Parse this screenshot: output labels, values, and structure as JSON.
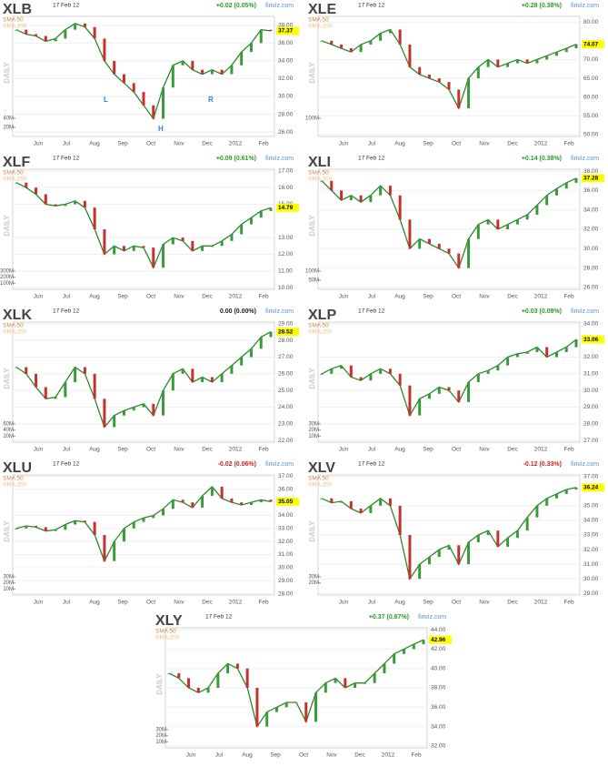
{
  "chart_data": [
    {
      "type": "line",
      "title": "XLB",
      "date": "17 Feb 12",
      "change": "+0.02 (0.05%)",
      "change_color": "#2a9a2a",
      "source": "finviz.com",
      "legend": [
        "SMA 50",
        "SMA 200"
      ],
      "axis_label": "DAILY",
      "annotations": [
        "L",
        "R",
        "H"
      ],
      "x_labels": [
        "Jun",
        "Jul",
        "Aug",
        "Sep",
        "Oct",
        "Nov",
        "Dec",
        "2012",
        "Feb"
      ],
      "values": [
        37.5,
        37,
        36.8,
        36.2,
        36.5,
        37.5,
        38.2,
        37.8,
        36.5,
        34,
        32.5,
        31.5,
        30.5,
        29,
        27.5,
        31,
        33.5,
        34,
        33,
        32.5,
        33,
        32.5,
        33.5,
        35,
        36,
        37.5,
        37.37
      ],
      "ylim": [
        25.5,
        39
      ],
      "yticks": [
        {
          "value": 38,
          "label": "38.00"
        },
        {
          "value": 36,
          "label": "36.00"
        },
        {
          "value": 34,
          "label": "34.00"
        },
        {
          "value": 32,
          "label": "32.00"
        },
        {
          "value": 30,
          "label": "30.00"
        },
        {
          "value": 28,
          "label": "28.00"
        },
        {
          "value": 26,
          "label": "26.00"
        }
      ],
      "volume_lim": [
        0,
        60
      ],
      "volume_ticks": [
        {
          "value": 40,
          "label": "40M"
        },
        {
          "value": 20,
          "label": "20M"
        }
      ],
      "color": "#2a8a2a",
      "grid": true
    },
    {
      "type": "line",
      "title": "XLE",
      "date": "17 Feb 12",
      "change": "+0.28 (0.38%)",
      "change_color": "#2a9a2a",
      "source": "finviz.com",
      "legend": [
        "SMA 50",
        "SMA 200"
      ],
      "axis_label": "DAILY",
      "x_labels": [
        "Jun",
        "Jul",
        "Aug",
        "Sep",
        "Oct",
        "Nov",
        "Dec",
        "2012",
        "Feb"
      ],
      "values": [
        75,
        74,
        73,
        72,
        74,
        75,
        77,
        78,
        74,
        68,
        66,
        65,
        64,
        62,
        57,
        65,
        68,
        70,
        68,
        69,
        70,
        69,
        70,
        71,
        72,
        73,
        74.07
      ],
      "ylim": [
        49.5,
        81.5
      ],
      "yticks": [
        {
          "value": 80,
          "label": "80.00"
        },
        {
          "value": 70,
          "label": "70.00"
        },
        {
          "value": 65,
          "label": "65.00"
        },
        {
          "value": 60,
          "label": "60.00"
        },
        {
          "value": 55,
          "label": "55.00"
        },
        {
          "value": 50,
          "label": "50.00"
        }
      ],
      "volume_lim": [
        0,
        150
      ],
      "volume_ticks": [
        {
          "value": 100,
          "label": "100M"
        }
      ],
      "color": "#2a8a2a",
      "grid": true
    },
    {
      "type": "line",
      "title": "XLF",
      "date": "17 Feb 12",
      "change": "+0.09 (0.61%)",
      "change_color": "#2a9a2a",
      "source": "finviz.com",
      "legend": [
        "SMA 50",
        "SMA 200"
      ],
      "axis_label": "DAILY",
      "x_labels": [
        "Jun",
        "Jul",
        "Aug",
        "Sep",
        "Oct",
        "Nov",
        "Dec",
        "2012",
        "Feb"
      ],
      "values": [
        16.3,
        16,
        15.6,
        15,
        14.9,
        15,
        15.2,
        14.8,
        13.5,
        12,
        12.5,
        12.2,
        12.5,
        12.4,
        11.2,
        12.6,
        13,
        12.8,
        12.2,
        12.5,
        12.5,
        12.8,
        13.2,
        13.8,
        14.2,
        14.6,
        14.79
      ],
      "ylim": [
        9.9,
        17.1
      ],
      "yticks": [
        {
          "value": 17,
          "label": "17.00"
        },
        {
          "value": 16,
          "label": "16.00"
        },
        {
          "value": 15,
          "label": "15.00"
        },
        {
          "value": 13,
          "label": "13.00"
        },
        {
          "value": 12,
          "label": "12.00"
        },
        {
          "value": 11,
          "label": "11.00"
        },
        {
          "value": 10,
          "label": "10.00"
        }
      ],
      "volume_lim": [
        0,
        450
      ],
      "volume_ticks": [
        {
          "value": 300,
          "label": "300M"
        },
        {
          "value": 200,
          "label": "200M"
        },
        {
          "value": 100,
          "label": "100M"
        }
      ],
      "color": "#2a8a2a",
      "grid": true
    },
    {
      "type": "line",
      "title": "XLI",
      "date": "17 Feb 12",
      "change": "+0.14 (0.38%)",
      "change_color": "#2a9a2a",
      "source": "finviz.com",
      "legend": [
        "SMA 50",
        "SMA 200"
      ],
      "axis_label": "DAILY",
      "x_labels": [
        "Jun",
        "Jul",
        "Aug",
        "Sep",
        "Oct",
        "Nov",
        "Dec",
        "2012",
        "Feb"
      ],
      "values": [
        37,
        36,
        35,
        35.5,
        34.8,
        35.5,
        36.5,
        35.5,
        33,
        30,
        31,
        30.5,
        30,
        29.5,
        28,
        31,
        32.5,
        33,
        32,
        32.5,
        33,
        33.5,
        34.5,
        35.5,
        36.2,
        36.8,
        37.28
      ],
      "ylim": [
        25.8,
        38.2
      ],
      "yticks": [
        {
          "value": 38,
          "label": "38.00"
        },
        {
          "value": 36,
          "label": "36.00"
        },
        {
          "value": 34,
          "label": "34.00"
        },
        {
          "value": 32,
          "label": "32.00"
        },
        {
          "value": 30,
          "label": "30.00"
        },
        {
          "value": 28,
          "label": "28.00"
        },
        {
          "value": 26,
          "label": "26.00"
        }
      ],
      "volume_lim": [
        0,
        150
      ],
      "volume_ticks": [
        {
          "value": 100,
          "label": "100M"
        },
        {
          "value": 50,
          "label": "50M"
        }
      ],
      "color": "#2a8a2a",
      "grid": true
    },
    {
      "type": "line",
      "title": "XLK",
      "date": "17 Feb 12",
      "change": "0.00 (0.00%)",
      "change_color": "#222222",
      "source": "finviz.com",
      "legend": [
        "SMA 50",
        "SMA 200"
      ],
      "axis_label": "DAILY",
      "x_labels": [
        "Jun",
        "Jul",
        "Aug",
        "Sep",
        "Oct",
        "Nov",
        "Dec",
        "2012",
        "Feb"
      ],
      "values": [
        26.4,
        26,
        25.2,
        24.5,
        24.6,
        25.5,
        26.4,
        26,
        24.5,
        22.8,
        23.5,
        23.8,
        24,
        24.2,
        23.5,
        25,
        26,
        26.3,
        25.5,
        25.8,
        25.5,
        26,
        26.5,
        27,
        27.5,
        28.2,
        28.52
      ],
      "ylim": [
        21.9,
        29.1
      ],
      "yticks": [
        {
          "value": 29,
          "label": "29.00"
        },
        {
          "value": 28,
          "label": "28.00"
        },
        {
          "value": 27,
          "label": "27.00"
        },
        {
          "value": 26,
          "label": "26.00"
        },
        {
          "value": 25,
          "label": "25.00"
        },
        {
          "value": 24,
          "label": "24.00"
        },
        {
          "value": 23,
          "label": "23.00"
        },
        {
          "value": 22,
          "label": "22.00"
        }
      ],
      "volume_lim": [
        0,
        90
      ],
      "volume_ticks": [
        {
          "value": 60,
          "label": "60M"
        },
        {
          "value": 40,
          "label": "40M"
        },
        {
          "value": 20,
          "label": "20M"
        }
      ],
      "color": "#2a8a2a",
      "grid": true
    },
    {
      "type": "line",
      "title": "XLP",
      "date": "17 Feb 12",
      "change": "+0.03 (0.09%)",
      "change_color": "#2a9a2a",
      "source": "finviz.com",
      "legend": [
        "SMA 50",
        "SMA 200"
      ],
      "axis_label": "DAILY",
      "x_labels": [
        "Jun",
        "Jul",
        "Aug",
        "Sep",
        "Oct",
        "Nov",
        "Dec",
        "2012",
        "Feb"
      ],
      "values": [
        31,
        31.3,
        31.5,
        30.8,
        30.6,
        31,
        31.3,
        31,
        30.3,
        28.5,
        29.5,
        29.8,
        30.2,
        30,
        29.3,
        30.5,
        31,
        31.2,
        31.5,
        32,
        32.2,
        32.3,
        32.6,
        32,
        32.3,
        32.6,
        33.06
      ],
      "ylim": [
        26.9,
        34.1
      ],
      "yticks": [
        {
          "value": 34,
          "label": "34.00"
        },
        {
          "value": 32,
          "label": "32.00"
        },
        {
          "value": 31,
          "label": "31.00"
        },
        {
          "value": 30,
          "label": "30.00"
        },
        {
          "value": 29,
          "label": "29.00"
        },
        {
          "value": 28,
          "label": "28.00"
        },
        {
          "value": 27,
          "label": "27.00"
        }
      ],
      "volume_lim": [
        0,
        45
      ],
      "volume_ticks": [
        {
          "value": 30,
          "label": "30M"
        },
        {
          "value": 20,
          "label": "20M"
        },
        {
          "value": 10,
          "label": "10M"
        }
      ],
      "color": "#2a8a2a",
      "grid": true
    },
    {
      "type": "line",
      "title": "XLU",
      "date": "17 Feb 12",
      "change": "-0.02 (0.06%)",
      "change_color": "#d02020",
      "source": "finviz.com",
      "legend": [
        "SMA 50",
        "SMA 200"
      ],
      "axis_label": "DAILY",
      "x_labels": [
        "Jun",
        "Jul",
        "Aug",
        "Sep",
        "Oct",
        "Nov",
        "Dec",
        "2012",
        "Feb"
      ],
      "values": [
        33,
        33.2,
        33.1,
        32.8,
        32.9,
        33.3,
        33.6,
        33.5,
        32.5,
        30.5,
        32,
        33,
        33.5,
        33.8,
        34,
        34.5,
        35.2,
        35,
        34.6,
        35.5,
        36.2,
        35.3,
        35,
        34.8,
        35,
        35.2,
        35.05
      ],
      "ylim": [
        27.9,
        37.1
      ],
      "yticks": [
        {
          "value": 37,
          "label": "37.00"
        },
        {
          "value": 36,
          "label": "36.00"
        },
        {
          "value": 34,
          "label": "34.00"
        },
        {
          "value": 33,
          "label": "33.00"
        },
        {
          "value": 32,
          "label": "32.00"
        },
        {
          "value": 31,
          "label": "31.00"
        },
        {
          "value": 30,
          "label": "30.00"
        },
        {
          "value": 29,
          "label": "29.00"
        },
        {
          "value": 28,
          "label": "28.00"
        }
      ],
      "volume_lim": [
        0,
        45
      ],
      "volume_ticks": [
        {
          "value": 30,
          "label": "30M"
        },
        {
          "value": 20,
          "label": "20M"
        },
        {
          "value": 10,
          "label": "10M"
        }
      ],
      "color": "#2a8a2a",
      "grid": true
    },
    {
      "type": "line",
      "title": "XLV",
      "date": "17 Feb 12",
      "change": "-0.12 (0.33%)",
      "change_color": "#d02020",
      "source": "finviz.com",
      "legend": [
        "SMA 50",
        "SMA 200"
      ],
      "axis_label": "DAILY",
      "x_labels": [
        "Jun",
        "Jul",
        "Aug",
        "Sep",
        "Oct",
        "Nov",
        "Dec",
        "2012",
        "Feb"
      ],
      "values": [
        35.5,
        35.2,
        35.3,
        34.8,
        34.5,
        35,
        35.5,
        35,
        33,
        30,
        31,
        31.5,
        32,
        32.3,
        31,
        32.5,
        33,
        33.3,
        32.2,
        32.8,
        33.3,
        34.2,
        35,
        35.5,
        35.8,
        36.1,
        36.24
      ],
      "ylim": [
        28.9,
        37.1
      ],
      "yticks": [
        {
          "value": 37,
          "label": "37.00"
        },
        {
          "value": 35,
          "label": "35.00"
        },
        {
          "value": 34,
          "label": "34.00"
        },
        {
          "value": 33,
          "label": "33.00"
        },
        {
          "value": 32,
          "label": "32.00"
        },
        {
          "value": 31,
          "label": "31.00"
        },
        {
          "value": 30,
          "label": "30.00"
        },
        {
          "value": 29,
          "label": "29.00"
        }
      ],
      "volume_lim": [
        0,
        45
      ],
      "volume_ticks": [
        {
          "value": 30,
          "label": "30M"
        },
        {
          "value": 20,
          "label": "20M"
        }
      ],
      "color": "#2a8a2a",
      "grid": true
    },
    {
      "type": "line",
      "title": "XLY",
      "date": "17 Feb 12",
      "change": "+0.37 (0.87%)",
      "change_color": "#2a9a2a",
      "source": "finviz.com",
      "legend": [
        "SMA 50",
        "SMA 200"
      ],
      "axis_label": "DAILY",
      "x_labels": [
        "Jun",
        "Jul",
        "Aug",
        "Sep",
        "Oct",
        "Nov",
        "Dec",
        "2012",
        "Feb"
      ],
      "values": [
        39.5,
        39,
        38,
        37.5,
        38,
        39.5,
        40.5,
        40,
        38,
        34,
        35.5,
        36,
        36.5,
        36.5,
        34.5,
        37.5,
        38.5,
        39,
        38,
        38.5,
        38.5,
        39.5,
        40.5,
        41.5,
        42,
        42.5,
        42.96
      ],
      "ylim": [
        31.8,
        44.2
      ],
      "yticks": [
        {
          "value": 44,
          "label": "44.00"
        },
        {
          "value": 42,
          "label": "42.00"
        },
        {
          "value": 40,
          "label": "40.00"
        },
        {
          "value": 38,
          "label": "38.00"
        },
        {
          "value": 36,
          "label": "36.00"
        },
        {
          "value": 34,
          "label": "34.00"
        },
        {
          "value": 32,
          "label": "32.00"
        }
      ],
      "volume_lim": [
        0,
        45
      ],
      "volume_ticks": [
        {
          "value": 30,
          "label": "30M"
        },
        {
          "value": 20,
          "label": "20M"
        },
        {
          "value": 10,
          "label": "10M"
        }
      ],
      "color": "#2a8a2a",
      "grid": true
    }
  ]
}
